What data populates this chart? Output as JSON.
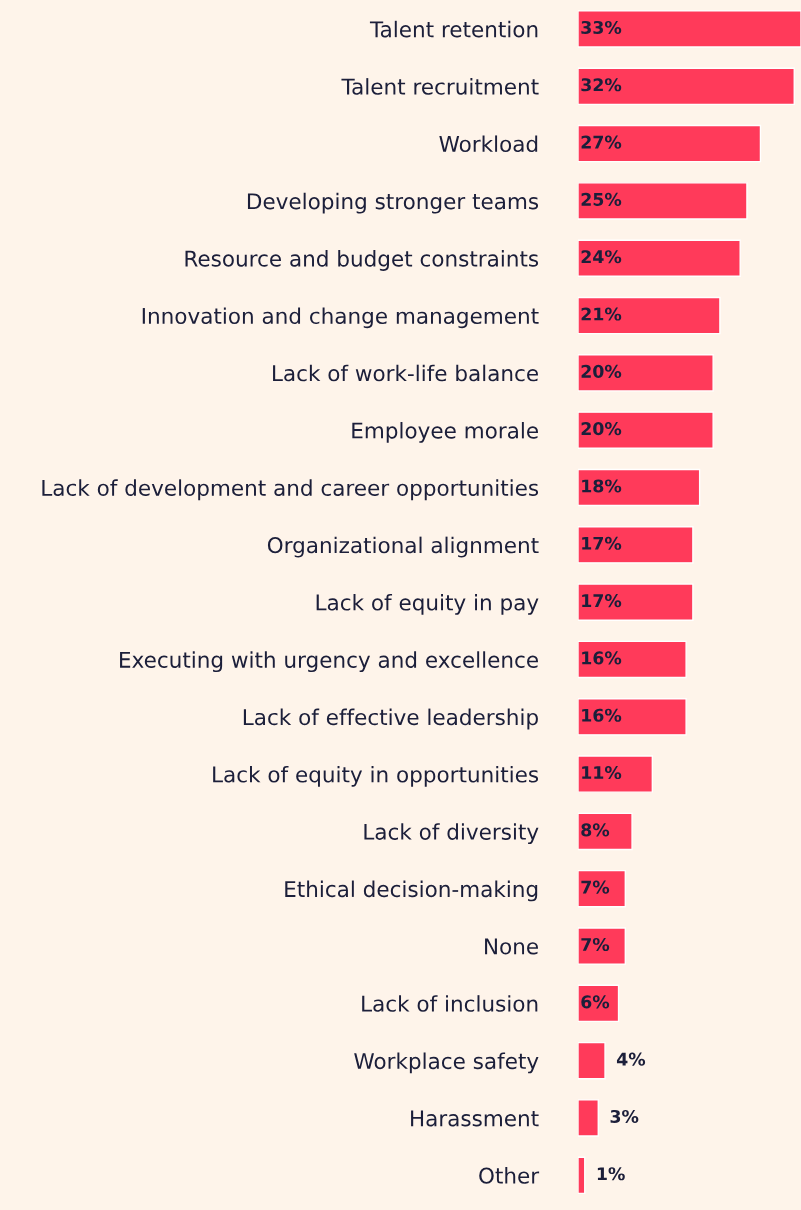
{
  "chart_data": {
    "type": "bar",
    "orientation": "horizontal",
    "categories": [
      "Talent retention",
      "Talent recruitment",
      "Workload",
      "Developing stronger teams",
      "Resource and budget constraints",
      "Innovation and change management",
      "Lack of work-life balance",
      "Employee morale",
      "Lack of development and career opportunities",
      "Organizational alignment",
      "Lack of equity in pay",
      "Executing with urgency and excellence",
      "Lack of effective leadership",
      "Lack of equity in opportunities",
      "Lack of diversity",
      "Ethical decision-making",
      "None",
      "Lack of inclusion",
      "Workplace safety",
      "Harassment",
      "Other"
    ],
    "values": [
      33,
      32,
      27,
      25,
      24,
      21,
      20,
      20,
      18,
      17,
      17,
      16,
      16,
      11,
      8,
      7,
      7,
      6,
      4,
      3,
      1
    ],
    "value_labels": [
      "33%",
      "32%",
      "27%",
      "25%",
      "24%",
      "21%",
      "20%",
      "20%",
      "18%",
      "17%",
      "17%",
      "16%",
      "16%",
      "11%",
      "8%",
      "7%",
      "7%",
      "6%",
      "4%",
      "3%",
      "1%"
    ],
    "color": "#ff3a5a",
    "tick_labels": "y",
    "grid": false,
    "legend": false
  }
}
